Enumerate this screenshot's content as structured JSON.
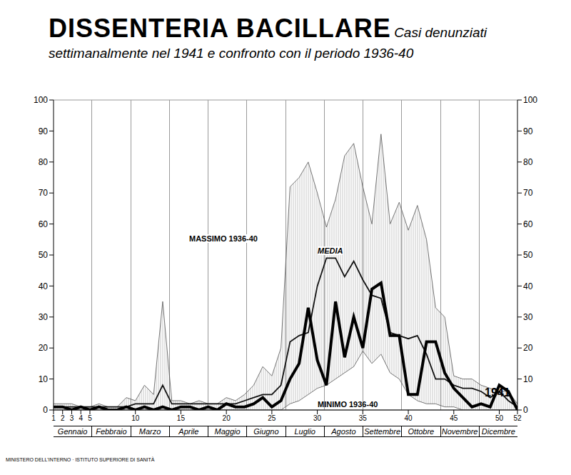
{
  "chart_data": {
    "type": "line",
    "title": "DISSENTERIA BACILLARE",
    "subtitle": "Casi denunziati settimanalmente nel 1941 e confronto con il periodo 1936-40",
    "footer": "MINISTERO DELL'INTERNO · ISTITUTO SUPERIORE DI SANITÀ",
    "x": [
      1,
      2,
      3,
      4,
      5,
      6,
      7,
      8,
      9,
      10,
      11,
      12,
      13,
      14,
      15,
      16,
      17,
      18,
      19,
      20,
      21,
      22,
      23,
      24,
      25,
      26,
      27,
      28,
      29,
      30,
      31,
      32,
      33,
      34,
      35,
      36,
      37,
      38,
      39,
      40,
      41,
      42,
      43,
      44,
      45,
      46,
      47,
      48,
      49,
      50,
      51,
      52
    ],
    "xlim": [
      1,
      52
    ],
    "xticks": [
      1,
      2,
      3,
      4,
      5,
      10,
      15,
      20,
      25,
      30,
      35,
      40,
      45,
      50,
      52
    ],
    "months": [
      "Gennaio",
      "Febbraio",
      "Marzo",
      "Aprile",
      "Maggio",
      "Giugno",
      "Luglio",
      "Agosto",
      "Settembre",
      "Ottobre",
      "Novembre",
      "Dicembre"
    ],
    "ylim": [
      0,
      100
    ],
    "yticks": [
      0,
      10,
      20,
      30,
      40,
      50,
      60,
      70,
      80,
      90,
      100
    ],
    "grid": true,
    "series": [
      {
        "name": "MASSIMO 1936-40",
        "color": "#555555",
        "line_style": "thin",
        "values": [
          2,
          2,
          2,
          1,
          1,
          2,
          1,
          1,
          4,
          3,
          8,
          5,
          35,
          3,
          3,
          2,
          3,
          2,
          2,
          4,
          3,
          5,
          8,
          14,
          11,
          20,
          72,
          75,
          80,
          70,
          59,
          68,
          82,
          86,
          72,
          60,
          89,
          60,
          67,
          58,
          66,
          55,
          33,
          30,
          11,
          10,
          10,
          8,
          7,
          6,
          6,
          2
        ]
      },
      {
        "name": "MINIMO 1936-40",
        "color": "#555555",
        "line_style": "thin",
        "values": [
          0,
          0,
          0,
          0,
          0,
          0,
          0,
          0,
          0,
          0,
          0,
          0,
          0,
          0,
          0,
          0,
          0,
          0,
          0,
          0,
          0,
          0,
          0,
          0,
          0,
          0,
          2,
          3,
          5,
          7,
          8,
          10,
          12,
          14,
          19,
          15,
          18,
          12,
          10,
          5,
          3,
          2,
          2,
          1,
          1,
          0,
          0,
          0,
          0,
          0,
          0,
          0
        ]
      },
      {
        "name": "MEDIA",
        "color": "#111111",
        "line_style": "solid",
        "values": [
          1,
          1,
          1,
          1,
          1,
          1,
          1,
          1,
          1,
          2,
          2,
          2,
          8,
          2,
          2,
          2,
          2,
          2,
          2,
          2,
          2,
          3,
          4,
          5,
          5,
          8,
          22,
          24,
          25,
          40,
          49,
          49,
          43,
          48,
          42,
          37,
          36,
          25,
          24,
          23,
          24,
          18,
          10,
          10,
          8,
          7,
          7,
          6,
          4,
          6,
          3,
          1
        ]
      },
      {
        "name": "1941",
        "color": "#000000",
        "line_style": "bold",
        "values": [
          1,
          1,
          0,
          1,
          0,
          1,
          0,
          0,
          1,
          0,
          1,
          0,
          1,
          0,
          1,
          1,
          0,
          1,
          0,
          2,
          1,
          1,
          2,
          4,
          1,
          3,
          10,
          15,
          33,
          16,
          8,
          35,
          17,
          30,
          20,
          39,
          41,
          24,
          24,
          5,
          5,
          22,
          22,
          12,
          7,
          4,
          1,
          2,
          1,
          8,
          6,
          0
        ]
      }
    ]
  }
}
